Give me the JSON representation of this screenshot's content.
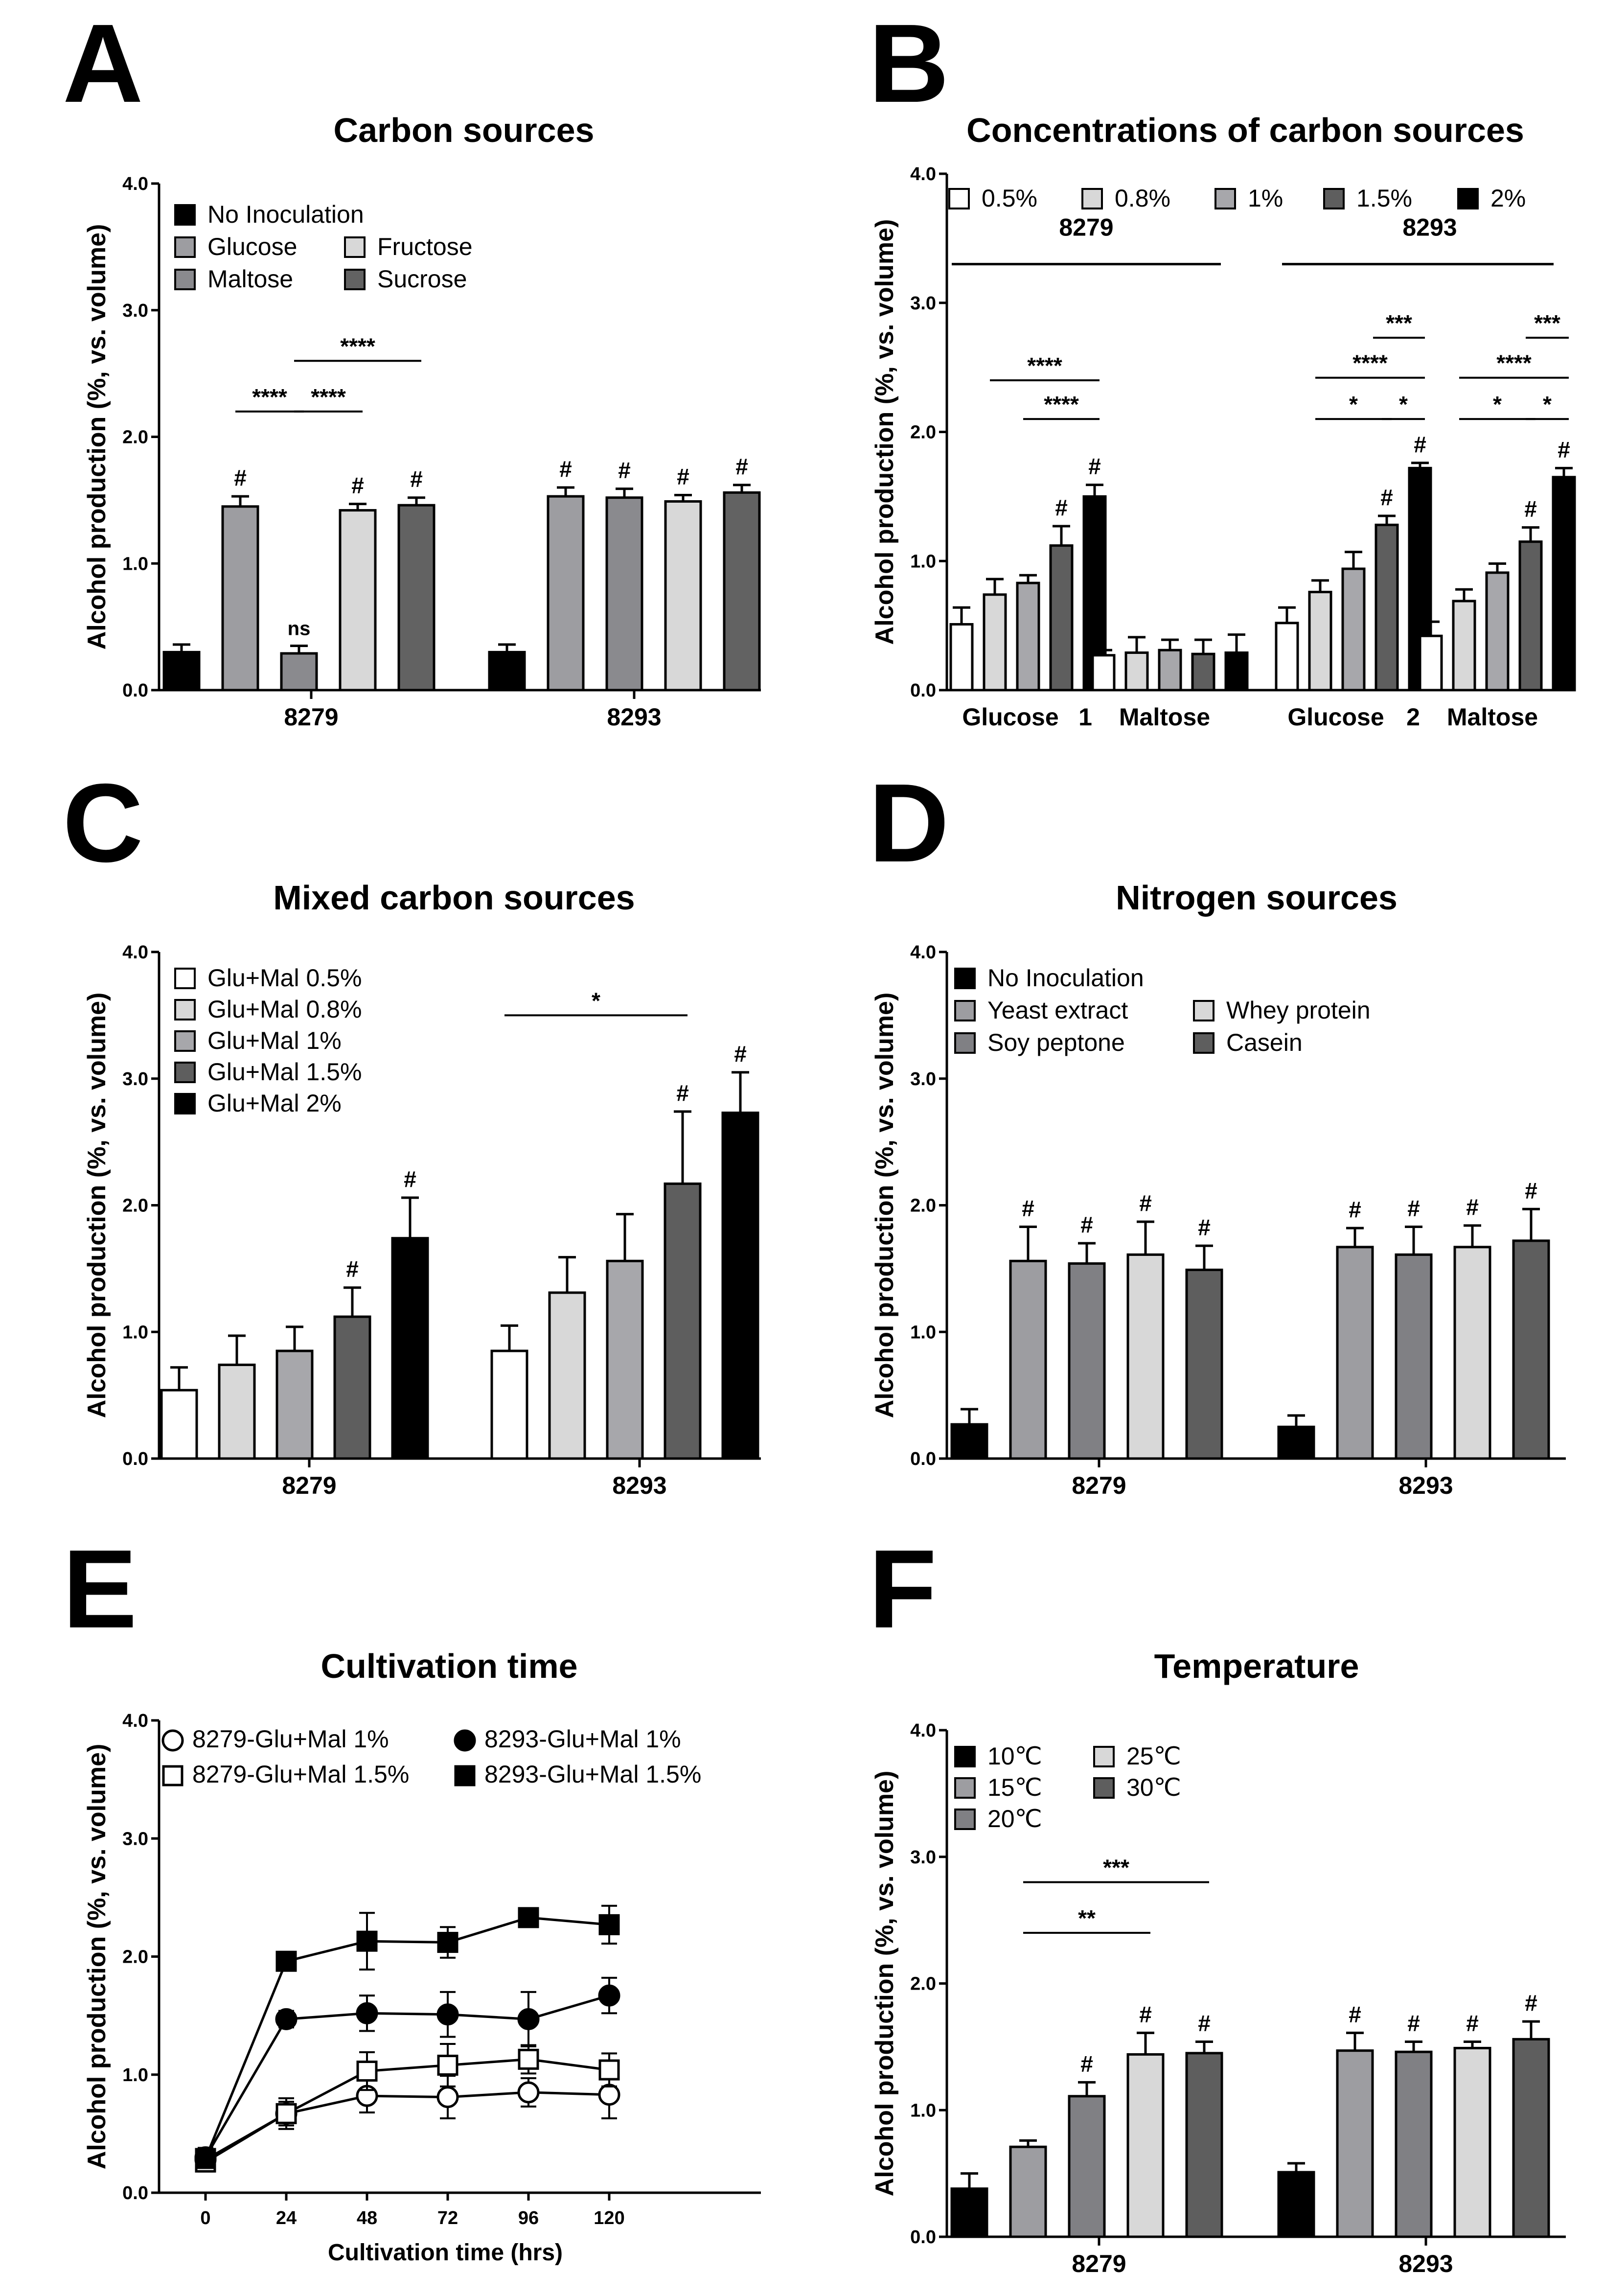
{
  "chart_data": [
    {
      "id": "A",
      "type": "bar",
      "letter": "A",
      "title": "Carbon sources",
      "ylabel": "Alcohol production (%, vs. volume)",
      "xlabel": "",
      "ylim": [
        0,
        4
      ],
      "yticks": [
        "0.0",
        "1.0",
        "2.0",
        "3.0",
        "4.0"
      ],
      "categories": [
        "8279",
        "8293"
      ],
      "series": [
        {
          "name": "No Inoculation",
          "color": "#000000",
          "values": [
            0.3,
            0.3
          ],
          "errors": [
            0.06,
            0.06
          ],
          "marks": [
            "",
            ""
          ]
        },
        {
          "name": "Glucose",
          "color": "#9d9da1",
          "values": [
            1.45,
            1.53
          ],
          "errors": [
            0.08,
            0.07
          ],
          "marks": [
            "#",
            "#"
          ]
        },
        {
          "name": "Maltose",
          "color": "#8a8a8e",
          "values": [
            0.29,
            1.52
          ],
          "errors": [
            0.06,
            0.07
          ],
          "marks": [
            "ns",
            "#"
          ]
        },
        {
          "name": "Fructose",
          "color": "#d8d8d8",
          "values": [
            1.42,
            1.49
          ],
          "errors": [
            0.05,
            0.05
          ],
          "marks": [
            "#",
            "#"
          ]
        },
        {
          "name": "Sucrose",
          "color": "#626262",
          "values": [
            1.46,
            1.56
          ],
          "errors": [
            0.06,
            0.06
          ],
          "marks": [
            "#",
            "#"
          ]
        }
      ],
      "legend": {
        "position": "top-left",
        "rows": [
          [
            "No Inoculation"
          ],
          [
            "Glucose",
            "Fructose"
          ],
          [
            "Maltose",
            "Sucrose"
          ]
        ]
      },
      "significance": [
        {
          "group": 0,
          "from": 1,
          "to": 2,
          "y": 2.2,
          "label": "****"
        },
        {
          "group": 0,
          "from": 2,
          "to": 3,
          "y": 2.2,
          "label": "****"
        },
        {
          "group": 0,
          "from": 2,
          "to": 4,
          "y": 2.6,
          "label": "****"
        }
      ]
    },
    {
      "id": "B",
      "type": "bar",
      "letter": "B",
      "title": "Concentrations of carbon sources",
      "ylabel": "Alcohol production (%, vs. volume)",
      "xlabel": "",
      "ylim": [
        0,
        4
      ],
      "yticks": [
        "0.0",
        "1.0",
        "2.0",
        "3.0",
        "4.0"
      ],
      "categories": [
        "Glucose",
        "Maltose",
        "Glucose",
        "Maltose"
      ],
      "strains": [
        {
          "name": "8279",
          "subscript": "1"
        },
        {
          "name": "8293",
          "subscript": "2"
        }
      ],
      "series": [
        {
          "name": "0.5%",
          "color": "#ffffff",
          "values": [
            0.51,
            0.27,
            0.52,
            0.42
          ],
          "errors": [
            0.13,
            0.04,
            0.12,
            0.11
          ],
          "marks": [
            "",
            "",
            "",
            ""
          ]
        },
        {
          "name": "0.8%",
          "color": "#d8d8d8",
          "values": [
            0.74,
            0.29,
            0.76,
            0.69
          ],
          "errors": [
            0.12,
            0.12,
            0.09,
            0.09
          ],
          "marks": [
            "",
            "",
            "",
            ""
          ]
        },
        {
          "name": "1%",
          "color": "#a7a7ab",
          "values": [
            0.83,
            0.31,
            0.94,
            0.91
          ],
          "errors": [
            0.06,
            0.08,
            0.13,
            0.07
          ],
          "marks": [
            "",
            "",
            "",
            ""
          ]
        },
        {
          "name": "1.5%",
          "color": "#5e5e5e",
          "values": [
            1.12,
            0.28,
            1.28,
            1.15
          ],
          "errors": [
            0.15,
            0.11,
            0.07,
            0.11
          ],
          "marks": [
            "#",
            "",
            "#",
            "#"
          ]
        },
        {
          "name": "2%",
          "color": "#000000",
          "values": [
            1.5,
            0.29,
            1.72,
            1.65
          ],
          "errors": [
            0.09,
            0.14,
            0.04,
            0.07
          ],
          "marks": [
            "#",
            "",
            "#",
            "#"
          ]
        }
      ],
      "legend": {
        "position": "top",
        "rows": [
          [
            "0.5%",
            "0.8%",
            "1%",
            "1.5%",
            "2%"
          ]
        ]
      },
      "significance": [
        {
          "group": 0,
          "from": 1,
          "to": 4,
          "y": 2.4,
          "label": "****"
        },
        {
          "group": 0,
          "from": 2,
          "to": 4,
          "y": 2.1,
          "label": "****"
        },
        {
          "group": 2,
          "from": 4,
          "to": 4,
          "x_to_series": 2,
          "y": 2.73,
          "label": "***"
        },
        {
          "group": 2,
          "from": 1,
          "to": 4,
          "y": 2.42,
          "label": "****"
        },
        {
          "group": 2,
          "from": 1,
          "to": 3,
          "y": 2.1,
          "label": "*"
        },
        {
          "group": 2,
          "from": 3,
          "to": 4,
          "y": 2.1,
          "label": "*"
        },
        {
          "group": 3,
          "from": 3,
          "to": 4,
          "y": 2.73,
          "label": "***"
        },
        {
          "group": 3,
          "from": 1,
          "to": 4,
          "y": 2.42,
          "label": "****"
        },
        {
          "group": 3,
          "from": 1,
          "to": 3,
          "y": 2.1,
          "label": "*"
        },
        {
          "group": 3,
          "from": 3,
          "to": 4,
          "y": 2.1,
          "label": "*"
        }
      ]
    },
    {
      "id": "C",
      "type": "bar",
      "letter": "C",
      "title": "Mixed carbon sources",
      "ylabel": "Alcohol production (%, vs. volume)",
      "xlabel": "",
      "ylim": [
        0,
        4
      ],
      "yticks": [
        "0.0",
        "1.0",
        "2.0",
        "3.0",
        "4.0"
      ],
      "categories": [
        "8279",
        "8293"
      ],
      "series": [
        {
          "name": "Glu+Mal 0.5%",
          "color": "#ffffff",
          "values": [
            0.54,
            0.85
          ],
          "errors": [
            0.18,
            0.2
          ],
          "marks": [
            "",
            ""
          ]
        },
        {
          "name": "Glu+Mal 0.8%",
          "color": "#d8d8d8",
          "values": [
            0.74,
            1.31
          ],
          "errors": [
            0.23,
            0.28
          ],
          "marks": [
            "",
            ""
          ]
        },
        {
          "name": "Glu+Mal 1%",
          "color": "#a7a7ab",
          "values": [
            0.85,
            1.56
          ],
          "errors": [
            0.19,
            0.37
          ],
          "marks": [
            "",
            ""
          ]
        },
        {
          "name": "Glu+Mal 1.5%",
          "color": "#5e5e5e",
          "values": [
            1.12,
            2.17
          ],
          "errors": [
            0.23,
            0.57
          ],
          "marks": [
            "#",
            "#"
          ]
        },
        {
          "name": "Glu+Mal 2%",
          "color": "#000000",
          "values": [
            1.74,
            2.73
          ],
          "errors": [
            0.32,
            0.32
          ],
          "marks": [
            "#",
            "#"
          ]
        }
      ],
      "legend": {
        "position": "top-left",
        "rows": [
          [
            "Glu+Mal 0.5%"
          ],
          [
            "Glu+Mal 0.8%"
          ],
          [
            "Glu+Mal 1%"
          ],
          [
            "Glu+Mal 1.5%"
          ],
          [
            "Glu+Mal 2%"
          ]
        ]
      },
      "significance": [
        {
          "group": 1,
          "from": 0,
          "to": 3,
          "y": 3.5,
          "label": "*"
        }
      ]
    },
    {
      "id": "D",
      "type": "bar",
      "letter": "D",
      "title": "Nitrogen sources",
      "ylabel": "Alcohol production (%, vs. volume)",
      "xlabel": "",
      "ylim": [
        0,
        4
      ],
      "yticks": [
        "0.0",
        "1.0",
        "2.0",
        "3.0",
        "4.0"
      ],
      "categories": [
        "8279",
        "8293"
      ],
      "series": [
        {
          "name": "No Inoculation",
          "color": "#000000",
          "values": [
            0.27,
            0.25
          ],
          "errors": [
            0.12,
            0.09
          ],
          "marks": [
            "",
            ""
          ]
        },
        {
          "name": "Yeast extract",
          "color": "#9d9da1",
          "values": [
            1.56,
            1.67
          ],
          "errors": [
            0.27,
            0.15
          ],
          "marks": [
            "#",
            "#"
          ]
        },
        {
          "name": "Soy peptone",
          "color": "#808084",
          "values": [
            1.54,
            1.61
          ],
          "errors": [
            0.16,
            0.22
          ],
          "marks": [
            "#",
            "#"
          ]
        },
        {
          "name": "Whey protein",
          "color": "#d8d8d8",
          "values": [
            1.61,
            1.67
          ],
          "errors": [
            0.26,
            0.17
          ],
          "marks": [
            "#",
            "#"
          ]
        },
        {
          "name": "Casein",
          "color": "#5e5e5e",
          "values": [
            1.49,
            1.72
          ],
          "errors": [
            0.19,
            0.25
          ],
          "marks": [
            "#",
            "#"
          ]
        }
      ],
      "legend": {
        "position": "top-left",
        "rows": [
          [
            "No Inoculation"
          ],
          [
            "Yeast extract",
            "Whey protein"
          ],
          [
            "Soy peptone",
            "Casein"
          ]
        ]
      },
      "significance": []
    },
    {
      "id": "E",
      "type": "line",
      "letter": "E",
      "title": "Cultivation time",
      "ylabel": "Alcohol production (%, vs. volume)",
      "xlabel": "Cultivation time (hrs)",
      "ylim": [
        0,
        4
      ],
      "yticks": [
        "0.0",
        "1.0",
        "2.0",
        "3.0",
        "4.0"
      ],
      "x": [
        0,
        24,
        48,
        72,
        96,
        120
      ],
      "xticks": [
        "0",
        "24",
        "48",
        "72",
        "96",
        "120"
      ],
      "series": [
        {
          "name": "8279-Glu+Mal 1%",
          "marker": "circle",
          "filled": false,
          "values": [
            0.28,
            0.67,
            0.82,
            0.81,
            0.85,
            0.83
          ],
          "errors": [
            0.08,
            0.1,
            0.14,
            0.18,
            0.12,
            0.2
          ]
        },
        {
          "name": "8279-Glu+Mal 1.5%",
          "marker": "square",
          "filled": false,
          "values": [
            0.26,
            0.67,
            1.03,
            1.08,
            1.13,
            1.04
          ],
          "errors": [
            0.08,
            0.13,
            0.16,
            0.18,
            0.12,
            0.14
          ]
        },
        {
          "name": "8293-Glu+Mal 1%",
          "marker": "circle",
          "filled": true,
          "values": [
            0.3,
            1.47,
            1.52,
            1.51,
            1.47,
            1.67
          ],
          "errors": [
            0.08,
            0.07,
            0.15,
            0.19,
            0.23,
            0.15
          ]
        },
        {
          "name": "8293-Glu+Mal 1.5%",
          "marker": "square",
          "filled": true,
          "values": [
            0.29,
            1.96,
            2.13,
            2.12,
            2.33,
            2.27
          ],
          "errors": [
            0.08,
            0.08,
            0.24,
            0.13,
            0.04,
            0.16
          ]
        }
      ],
      "legend": {
        "position": "top",
        "rows": [
          [
            "8279-Glu+Mal 1%",
            "8293-Glu+Mal 1%"
          ],
          [
            "8279-Glu+Mal 1.5%",
            "8293-Glu+Mal 1.5%"
          ]
        ]
      }
    },
    {
      "id": "F",
      "type": "bar",
      "letter": "F",
      "title": "Temperature",
      "ylabel": "Alcohol production (%, vs. volume)",
      "xlabel": "",
      "ylim": [
        0,
        4
      ],
      "yticks": [
        "0.0",
        "1.0",
        "2.0",
        "3.0",
        "4.0"
      ],
      "categories": [
        "8279",
        "8293"
      ],
      "series": [
        {
          "name": "10℃",
          "color": "#000000",
          "values": [
            0.38,
            0.51
          ],
          "errors": [
            0.12,
            0.07
          ],
          "marks": [
            "",
            ""
          ]
        },
        {
          "name": "15℃",
          "color": "#9d9da1",
          "values": [
            0.71,
            1.47
          ],
          "errors": [
            0.05,
            0.14
          ],
          "marks": [
            "",
            "#"
          ]
        },
        {
          "name": "20℃",
          "color": "#808084",
          "values": [
            1.11,
            1.46
          ],
          "errors": [
            0.11,
            0.08
          ],
          "marks": [
            "#",
            "#"
          ]
        },
        {
          "name": "25℃",
          "color": "#d8d8d8",
          "values": [
            1.44,
            1.49
          ],
          "errors": [
            0.17,
            0.05
          ],
          "marks": [
            "#",
            "#"
          ]
        },
        {
          "name": "30℃",
          "color": "#5e5e5e",
          "values": [
            1.45,
            1.56
          ],
          "errors": [
            0.09,
            0.14
          ],
          "marks": [
            "#",
            "#"
          ]
        }
      ],
      "legend": {
        "position": "top-left",
        "rows": [
          [
            "10℃",
            "25℃"
          ],
          [
            "15℃",
            "30℃"
          ],
          [
            "20℃"
          ]
        ]
      },
      "significance": [
        {
          "group": 0,
          "from": 1,
          "to": 3,
          "y": 2.4,
          "label": "**"
        },
        {
          "group": 0,
          "from": 1,
          "to": 4,
          "y": 2.8,
          "label": "***"
        }
      ]
    }
  ]
}
